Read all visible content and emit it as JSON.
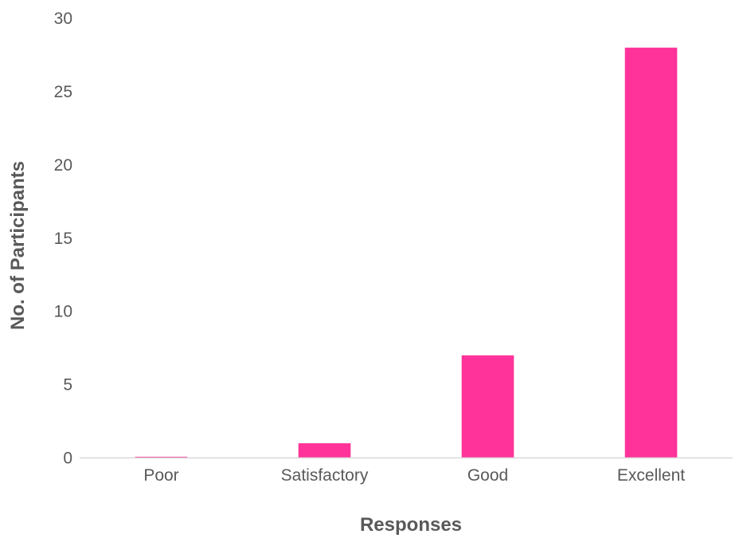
{
  "chart_data": {
    "type": "bar",
    "title": "",
    "xlabel": "Responses",
    "ylabel": "No. of Participants",
    "categories": [
      "Poor",
      "Satisfactory",
      "Good",
      "Excellent"
    ],
    "values": [
      0,
      1,
      7,
      28
    ],
    "ylim": [
      0,
      30
    ],
    "yticks": [
      0,
      5,
      10,
      15,
      20,
      25,
      30
    ],
    "ytick_labels": [
      "0",
      "5",
      "10",
      "15",
      "20",
      "25",
      "30"
    ],
    "grid": false,
    "legend": "none",
    "bar_color": "#FF3399",
    "axis_color": "#D9D9D9",
    "text_color": "#595959"
  }
}
